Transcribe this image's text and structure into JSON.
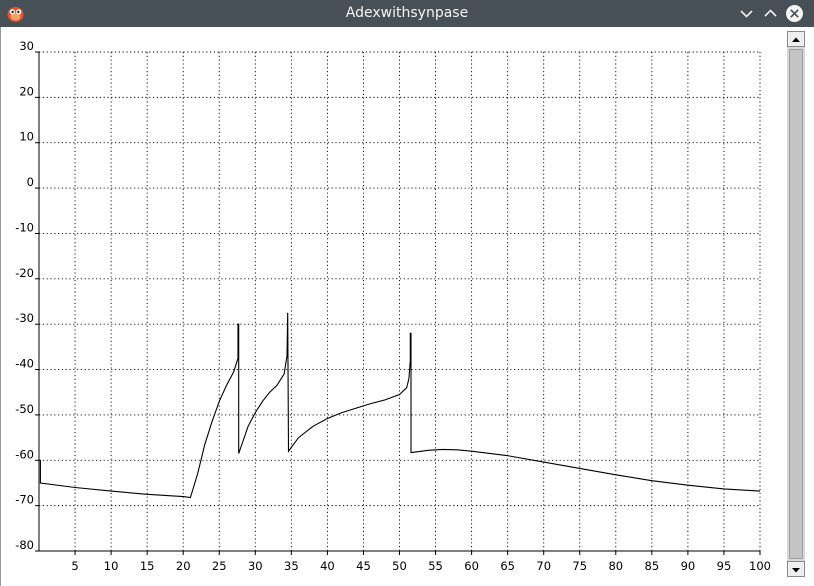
{
  "window": {
    "title": "Adexwithsynpase",
    "app_icon": "bug-app-icon",
    "controls": [
      "minimize-chevron-icon",
      "maximize-chevron-icon",
      "close-icon"
    ]
  },
  "colors": {
    "titlebar": "#475057",
    "trace": "#000000",
    "grid": "#000000"
  },
  "chart_data": {
    "type": "line",
    "title": "",
    "xlabel": "",
    "ylabel": "",
    "xlim": [
      0,
      100
    ],
    "ylim": [
      -80,
      30
    ],
    "grid": true,
    "grid_style": "dotted",
    "x_ticks": [
      5,
      10,
      15,
      20,
      25,
      30,
      35,
      40,
      45,
      50,
      55,
      60,
      65,
      70,
      75,
      80,
      85,
      90,
      95,
      100
    ],
    "y_ticks": [
      30,
      20,
      10,
      0,
      -10,
      -20,
      -30,
      -40,
      -50,
      -60,
      -70,
      -80
    ],
    "series": [
      {
        "x": [
          0,
          0.2,
          0.2,
          5,
          10,
          15,
          20,
          21,
          22,
          23,
          24,
          25,
          26,
          27,
          27.4,
          27.6,
          27.6,
          27.7,
          27.7,
          29,
          30,
          31,
          32,
          33,
          34,
          34.4,
          34.5,
          34.5,
          34.6,
          34.6,
          36,
          38,
          40,
          42,
          44,
          46,
          48,
          50,
          51,
          51.3,
          51.5,
          51.5,
          51.6,
          51.6,
          54,
          56,
          58,
          60,
          65,
          70,
          75,
          80,
          85,
          90,
          95,
          100
        ],
        "y": [
          -60,
          -60,
          -65,
          -66,
          -66.8,
          -67.5,
          -68,
          -68.2,
          -63,
          -56.5,
          -51.5,
          -47,
          -43.5,
          -40.5,
          -38.5,
          -37.5,
          -30,
          -30,
          -58.5,
          -52.5,
          -49.5,
          -47,
          -45,
          -43.5,
          -41,
          -37,
          -27.5,
          -27.5,
          -58,
          -58,
          -55,
          -52.5,
          -50.8,
          -49.5,
          -48.5,
          -47.5,
          -46.7,
          -45.5,
          -44,
          -42,
          -38,
          -32,
          -32,
          -58.3,
          -57.8,
          -57.6,
          -57.7,
          -58,
          -59,
          -60.4,
          -61.8,
          -63.2,
          -64.5,
          -65.5,
          -66.3,
          -66.8
        ]
      }
    ]
  }
}
